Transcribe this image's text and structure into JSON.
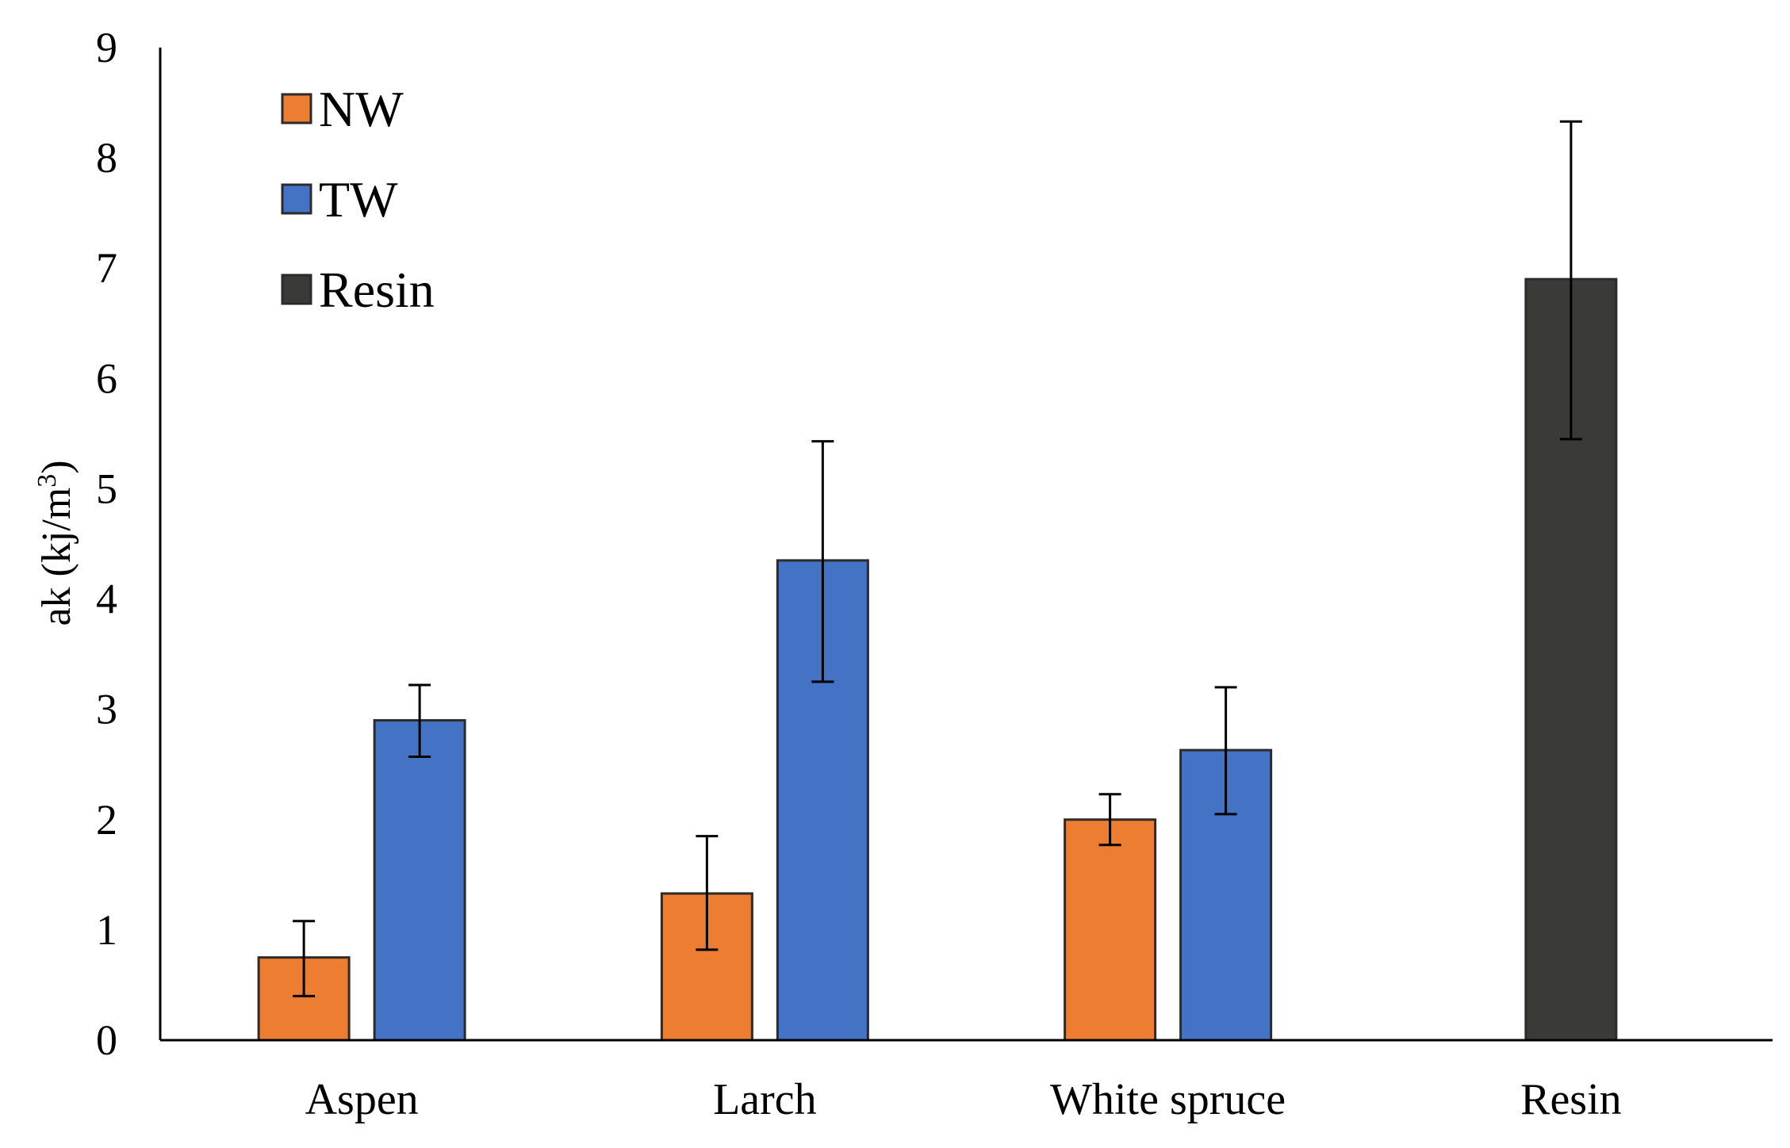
{
  "chart_data": {
    "type": "bar",
    "title": "",
    "xlabel": "",
    "ylabel": {
      "main": "ak (kj/m",
      "superscript": "3",
      "close": ")"
    },
    "ylim": [
      0,
      9
    ],
    "yticks": [
      "0",
      "1",
      "2",
      "3",
      "4",
      "5",
      "6",
      "7",
      "8",
      "9"
    ],
    "grid": false,
    "legend_position": "top-left",
    "categories": [
      "Aspen",
      "Larch",
      "White spruce",
      "Resin"
    ],
    "series": [
      {
        "name": "NW",
        "color": "#ED7D31",
        "values": [
          0.75,
          1.33,
          2.0,
          null
        ],
        "error_low": [
          0.4,
          0.82,
          1.77,
          null
        ],
        "error_high": [
          1.08,
          1.85,
          2.23,
          null
        ]
      },
      {
        "name": "TW",
        "color": "#4472C4",
        "values": [
          2.9,
          4.35,
          2.63,
          null
        ],
        "error_low": [
          2.57,
          3.25,
          2.05,
          null
        ],
        "error_high": [
          3.22,
          5.43,
          3.2,
          null
        ]
      },
      {
        "name": "Resin",
        "color": "#3A3A38",
        "values": [
          null,
          null,
          null,
          6.9
        ],
        "error_low": [
          null,
          null,
          null,
          5.45
        ],
        "error_high": [
          null,
          null,
          null,
          8.33
        ]
      }
    ]
  }
}
